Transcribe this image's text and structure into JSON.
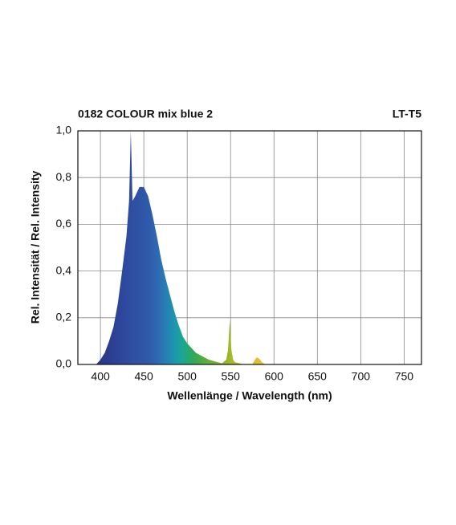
{
  "chart_data": {
    "type": "area",
    "title": "0182 COLOUR mix blue 2",
    "subtitle": "LT-T5",
    "x_label": "Wellenlänge / Wavelength (nm)",
    "y_label": "Rel. Intensität / Rel. Intensity",
    "x": [
      395,
      400,
      405,
      410,
      415,
      420,
      425,
      430,
      433,
      435,
      437,
      440,
      445,
      450,
      455,
      460,
      465,
      470,
      475,
      480,
      485,
      490,
      495,
      500,
      505,
      510,
      515,
      520,
      525,
      530,
      535,
      540,
      545,
      547,
      549,
      551,
      553,
      555,
      560,
      565,
      575,
      578,
      580,
      583,
      586,
      590
    ],
    "values": [
      0,
      0.02,
      0.05,
      0.1,
      0.16,
      0.26,
      0.4,
      0.55,
      0.7,
      1.0,
      0.7,
      0.72,
      0.76,
      0.76,
      0.72,
      0.64,
      0.55,
      0.45,
      0.37,
      0.3,
      0.23,
      0.17,
      0.12,
      0.09,
      0.07,
      0.05,
      0.04,
      0.03,
      0.02,
      0.015,
      0.01,
      0.005,
      0.02,
      0.06,
      0.19,
      0.06,
      0.02,
      0.01,
      0.005,
      0,
      0,
      0.02,
      0.03,
      0.025,
      0.01,
      0
    ],
    "colors": [
      "#2a3a8c",
      "#2a3a8c",
      "#2a3a8c",
      "#2b3d90",
      "#2c4094",
      "#2c4498",
      "#2d479c",
      "#2e4a9e",
      "#2e4ca0",
      "#2e4da1",
      "#2f4fa2",
      "#2f50a3",
      "#2f53a5",
      "#2f56a8",
      "#2f5aab",
      "#2f60ae",
      "#2e68b2",
      "#2c72b4",
      "#277eb4",
      "#218ab2",
      "#1c96ae",
      "#1aa0a4",
      "#1ea690",
      "#22a878",
      "#2ca864",
      "#3aa854",
      "#48aa48",
      "#58ac40",
      "#66ae3a",
      "#70b036",
      "#7cb232",
      "#88b42e",
      "#94b62c",
      "#98b72b",
      "#a2b82a",
      "#a8b82a",
      "#b0b82a",
      "#b8b82a",
      "#c4b82c",
      "#d0ba2e",
      "#dcbc30",
      "#e0bc30",
      "#e2bc32",
      "#e4bc32",
      "#e6bc32",
      "#e8bc32"
    ],
    "xlim": [
      374,
      770
    ],
    "ylim": [
      0,
      1
    ],
    "xticks": [
      400,
      450,
      500,
      550,
      600,
      650,
      700,
      750
    ],
    "yticks": [
      {
        "value": 0,
        "label": "0,0"
      },
      {
        "value": 0.2,
        "label": "0,2"
      },
      {
        "value": 0.4,
        "label": "0,4"
      },
      {
        "value": 0.6,
        "label": "0,6"
      },
      {
        "value": 0.8,
        "label": "0,8"
      },
      {
        "value": 1,
        "label": "1,0"
      }
    ],
    "grid": true
  }
}
